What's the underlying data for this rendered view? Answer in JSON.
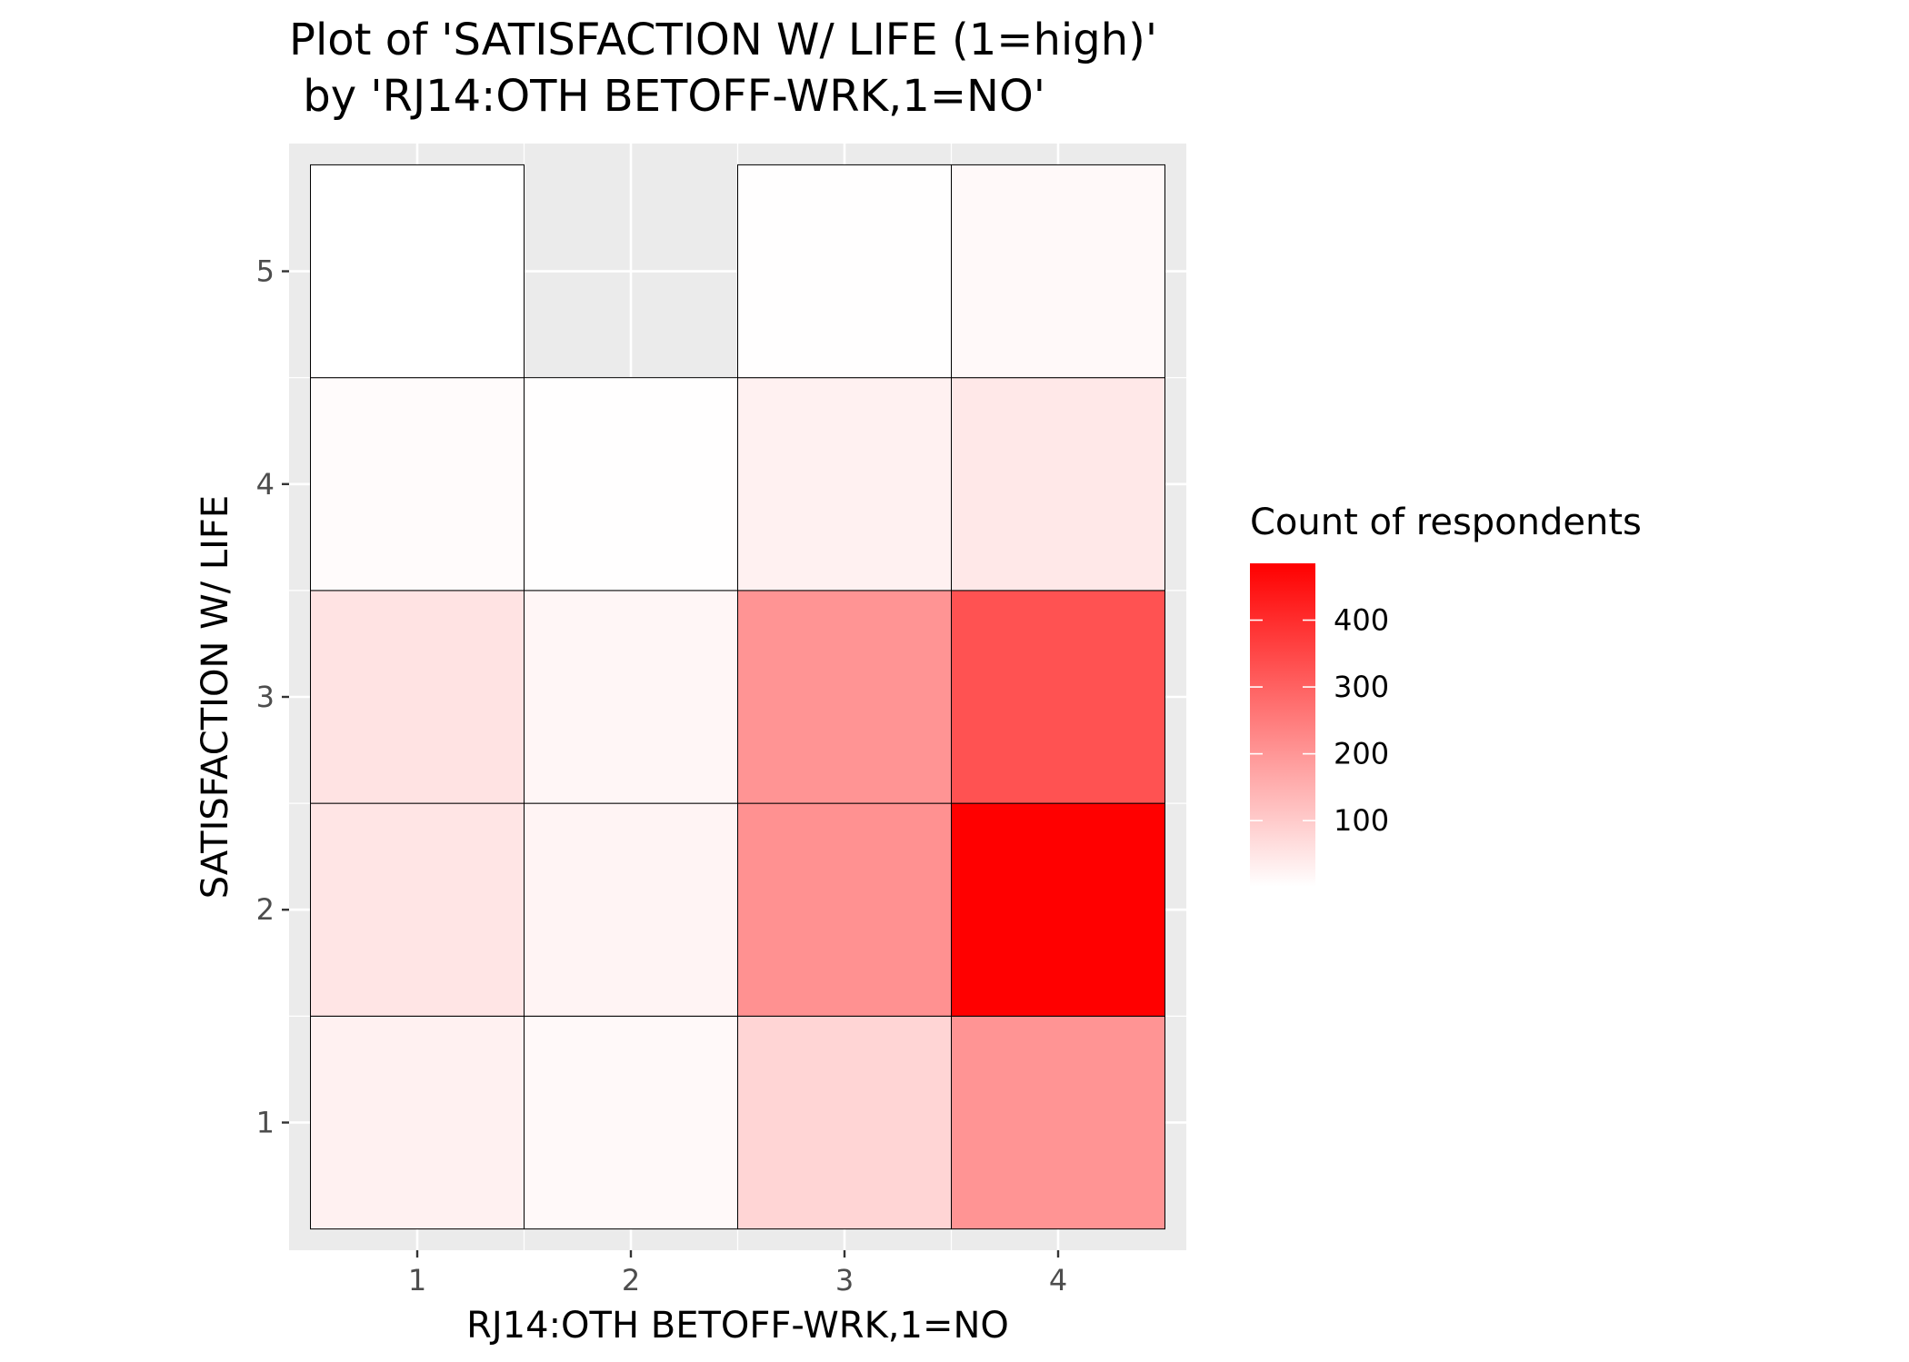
{
  "chart_data": {
    "type": "heatmap",
    "title_line1": "Plot of 'SATISFACTION W/ LIFE (1=high)'",
    "title_line2": " by 'RJ14:OTH BETOFF-WRK,1=NO'",
    "xlabel": "RJ14:OTH BETOFF-WRK,1=NO",
    "ylabel": "SATISFACTION W/ LIFE",
    "x_categories": [
      "1",
      "2",
      "3",
      "4"
    ],
    "y_categories": [
      "1",
      "2",
      "3",
      "4",
      "5"
    ],
    "xlim": [
      0.4,
      4.6
    ],
    "ylim": [
      0.4,
      5.6
    ],
    "cells": [
      {
        "x": 1,
        "y": 1,
        "value": 28
      },
      {
        "x": 1,
        "y": 2,
        "value": 50
      },
      {
        "x": 1,
        "y": 3,
        "value": 55
      },
      {
        "x": 1,
        "y": 4,
        "value": 8
      },
      {
        "x": 1,
        "y": 5,
        "value": 1
      },
      {
        "x": 2,
        "y": 1,
        "value": 12
      },
      {
        "x": 2,
        "y": 2,
        "value": 22
      },
      {
        "x": 2,
        "y": 3,
        "value": 18
      },
      {
        "x": 2,
        "y": 4,
        "value": 3
      },
      {
        "x": 3,
        "y": 1,
        "value": 80
      },
      {
        "x": 3,
        "y": 2,
        "value": 210
      },
      {
        "x": 3,
        "y": 3,
        "value": 205
      },
      {
        "x": 3,
        "y": 4,
        "value": 28
      },
      {
        "x": 3,
        "y": 5,
        "value": 3
      },
      {
        "x": 4,
        "y": 1,
        "value": 205
      },
      {
        "x": 4,
        "y": 2,
        "value": 485
      },
      {
        "x": 4,
        "y": 3,
        "value": 330
      },
      {
        "x": 4,
        "y": 4,
        "value": 45
      },
      {
        "x": 4,
        "y": 5,
        "value": 12
      }
    ],
    "legend": {
      "title": "Count of respondents",
      "ticks": [
        100,
        200,
        300,
        400
      ],
      "min": 1,
      "max": 485,
      "low_color": "#ffffff",
      "high_color": "#ff0000",
      "position": "right"
    },
    "panel_background": "#ebebeb",
    "grid": true,
    "tile_border_color": "#000000"
  }
}
